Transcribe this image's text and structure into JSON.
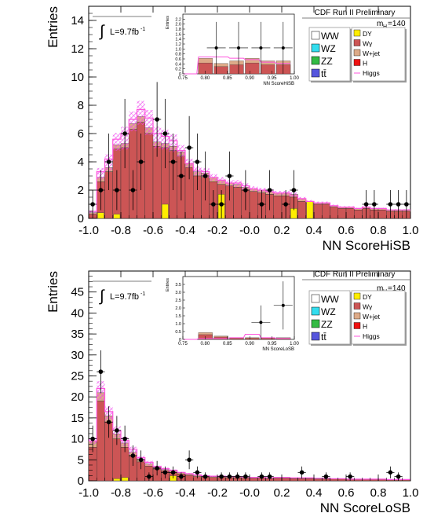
{
  "colors": {
    "WW": "#ffffff",
    "WZ": "#33ddee",
    "ZZ": "#33bb44",
    "ttbar": "#5555dd",
    "DY": "#ffee00",
    "Wgamma": "#cc5555",
    "Wjet": "#ddaa88",
    "H": "#ee1111",
    "Higgs": "#ff55dd",
    "hatch": "#ee44ee"
  },
  "chart_data": [
    {
      "id": "hisb",
      "type": "bar",
      "subtype": "stacked-histogram",
      "banner": "CDF Run II Preliminary",
      "lumi_prefix": "L=9.7fb",
      "lumi_sup": "-1",
      "mass_label": "m",
      "mass_sub": "H",
      "mass_value": "=140",
      "xlabel": "NN ScoreHiSB",
      "ylabel": "Entries",
      "xlim": [
        -1.0,
        1.0
      ],
      "ylim": [
        0,
        15
      ],
      "xticks": [
        "-1.0",
        "-0.8",
        "-0.6",
        "-0.4",
        "-0.2",
        "-0.0",
        "0.2",
        "0.4",
        "0.6",
        "0.8",
        "1.0"
      ],
      "yticks": [
        "0",
        "2",
        "4",
        "6",
        "8",
        "10",
        "12",
        "14"
      ],
      "bins": 40,
      "stack": {
        "Wgamma": [
          0.3,
          2.6,
          3.3,
          4.9,
          5.0,
          6.3,
          6.8,
          6.0,
          5.1,
          5.0,
          4.8,
          4.4,
          3.6,
          3.0,
          2.9,
          2.6,
          2.4,
          2.3,
          2.2,
          2.0,
          1.9,
          1.8,
          1.7,
          1.6,
          1.6,
          1.5,
          1.2,
          1.1,
          1.0,
          1.0,
          0.8,
          0.7,
          0.7,
          0.6,
          0.7,
          0.6,
          0.6,
          0.5,
          0.5,
          0.5
        ],
        "DY": [
          0,
          0,
          0,
          0,
          0,
          0,
          0,
          0,
          0,
          0,
          0,
          0,
          0,
          0,
          0,
          0,
          0,
          0,
          0,
          0,
          0,
          0,
          0,
          0,
          0,
          0,
          0,
          0,
          0,
          0,
          0,
          0,
          0,
          0,
          0,
          0,
          0,
          0,
          0,
          0
        ],
        "DY_hl": [
          0,
          0.4,
          0,
          0.3,
          0,
          0,
          0,
          0,
          0,
          1.0,
          0,
          0,
          0,
          0,
          0,
          0,
          1.7,
          0,
          0,
          0,
          0,
          0,
          0,
          0,
          0,
          0.7,
          0,
          1.2,
          0,
          0,
          0,
          0,
          0,
          0,
          0,
          0,
          0,
          0,
          0,
          0
        ],
        "Wjet": [
          0.1,
          0.3,
          0.3,
          0.3,
          0.3,
          0.4,
          0.4,
          0.4,
          0.3,
          0.3,
          0.3,
          0.3,
          0.3,
          0.3,
          0.3,
          0.3,
          0.3,
          0.2,
          0.2,
          0.2,
          0.2,
          0.2,
          0.2,
          0.2,
          0.2,
          0.2,
          0.2,
          0.1,
          0.1,
          0.1,
          0.1,
          0.1,
          0.1,
          0.1,
          0.1,
          0.1,
          0.1,
          0.1,
          0.1,
          0.1
        ]
      },
      "higgs": [
        0.5,
        3.3,
        4.2,
        5.6,
        6.0,
        7.0,
        7.7,
        7.1,
        6.0,
        5.8,
        5.5,
        4.8,
        3.9,
        3.4,
        3.3,
        2.9,
        2.7,
        2.5,
        2.5,
        2.3,
        2.1,
        2.0,
        1.9,
        1.8,
        1.8,
        1.6,
        1.4,
        1.2,
        1.1,
        1.1,
        0.9,
        0.8,
        0.8,
        0.7,
        0.8,
        0.7,
        0.7,
        0.6,
        0.6,
        0.6
      ],
      "data_points": [
        {
          "x": -0.975,
          "y": 1
        },
        {
          "x": -0.925,
          "y": 2
        },
        {
          "x": -0.875,
          "y": 4
        },
        {
          "x": -0.825,
          "y": 2
        },
        {
          "x": -0.775,
          "y": 6
        },
        {
          "x": -0.725,
          "y": 2
        },
        {
          "x": -0.675,
          "y": 4
        },
        {
          "x": -0.575,
          "y": 7
        },
        {
          "x": -0.525,
          "y": 6
        },
        {
          "x": -0.475,
          "y": 4
        },
        {
          "x": -0.425,
          "y": 3
        },
        {
          "x": -0.375,
          "y": 5
        },
        {
          "x": -0.325,
          "y": 4
        },
        {
          "x": -0.275,
          "y": 3
        },
        {
          "x": -0.225,
          "y": 1
        },
        {
          "x": -0.175,
          "y": 1
        },
        {
          "x": -0.125,
          "y": 3
        },
        {
          "x": -0.025,
          "y": 2
        },
        {
          "x": 0.075,
          "y": 1
        },
        {
          "x": 0.125,
          "y": 2
        },
        {
          "x": 0.225,
          "y": 1
        },
        {
          "x": 0.275,
          "y": 2
        },
        {
          "x": 0.725,
          "y": 1
        },
        {
          "x": 0.775,
          "y": 1
        },
        {
          "x": 0.875,
          "y": 1
        },
        {
          "x": 0.925,
          "y": 1
        },
        {
          "x": 0.975,
          "y": 1
        }
      ],
      "inset": {
        "ylabel": "Entries",
        "xlabel": "NN ScoreHiSB",
        "xlim": [
          0.75,
          1.0
        ],
        "ylim": [
          0,
          2.3
        ],
        "xticks": [
          "0.75",
          "0.80",
          "0.85",
          "0.90",
          "0.95",
          "1.00"
        ],
        "yticks": [
          "0",
          "0.2",
          "0.4",
          "0.6",
          "0.8",
          "1.0",
          "1.2",
          "1.4",
          "1.6",
          "1.8",
          "2.0",
          "2.2"
        ],
        "bars": [
          0,
          0.6,
          0.4,
          0.5,
          0.6,
          0.5,
          0.5
        ],
        "higgs": [
          0,
          0.65,
          0.65,
          0.6,
          0.55,
          0.45,
          0.4
        ],
        "data_points": [
          {
            "x": 0.825,
            "y": 1
          },
          {
            "x": 0.875,
            "y": 1
          },
          {
            "x": 0.925,
            "y": 1
          },
          {
            "x": 0.975,
            "y": 1
          }
        ]
      }
    },
    {
      "id": "losb",
      "type": "bar",
      "subtype": "stacked-histogram",
      "banner": "CDF Run II Preliminary",
      "lumi_prefix": "L=9.7fb",
      "lumi_sup": "-1",
      "mass_label": "m",
      "mass_sub": "H",
      "mass_value": "=140",
      "xlabel": "NN ScoreLoSB",
      "ylabel": "Entries",
      "xlim": [
        -1.0,
        1.0
      ],
      "ylim": [
        0,
        50
      ],
      "xticks": [
        "-1.0",
        "-0.8",
        "-0.6",
        "-0.4",
        "-0.2",
        "-0.0",
        "0.2",
        "0.4",
        "0.6",
        "0.8",
        "1.0"
      ],
      "yticks": [
        "0",
        "5",
        "10",
        "15",
        "20",
        "25",
        "30",
        "35",
        "40",
        "45"
      ],
      "bins": 40,
      "stack": {
        "Wgamma": [
          8,
          19,
          14,
          10,
          8,
          6,
          4.5,
          3.5,
          2.8,
          2.4,
          2.0,
          1.6,
          1.3,
          1.0,
          0.9,
          0.8,
          0.8,
          0.7,
          0.7,
          0.6,
          0.6,
          0.6,
          0.5,
          0.6,
          0.6,
          0.5,
          0.5,
          0.5,
          0.4,
          0.4,
          0.4,
          0.4,
          0.3,
          0.3,
          0.3,
          0.3,
          0.3,
          0.2,
          0.2,
          0.2
        ],
        "DY": [
          0,
          0,
          0,
          0,
          0,
          0,
          0,
          0,
          0,
          0,
          0,
          0,
          0,
          0,
          0,
          0,
          0,
          0,
          0,
          0,
          0,
          0,
          0,
          0,
          0,
          0,
          0,
          0,
          0,
          0,
          0,
          0,
          0,
          0,
          0,
          0,
          0,
          0,
          0,
          0
        ],
        "DY_hl": [
          0,
          0,
          0,
          0.5,
          0.8,
          0,
          0,
          0,
          0,
          0,
          1.2,
          0,
          0,
          0,
          0,
          0,
          0,
          0,
          0,
          0,
          0,
          0,
          0,
          0,
          0,
          0,
          0,
          0,
          0,
          0,
          0,
          0,
          0,
          0,
          0,
          0,
          0,
          0,
          0,
          0
        ],
        "Wjet": [
          1.5,
          2.0,
          1.5,
          1.2,
          1.0,
          0.8,
          0.6,
          0.5,
          0.4,
          0.3,
          0.3,
          0.3,
          0.3,
          0.3,
          0.3,
          0.2,
          0.2,
          0.2,
          0.2,
          0.2,
          0.2,
          0.2,
          0.2,
          0.2,
          0.2,
          0.2,
          0.2,
          0.2,
          0.2,
          0.2,
          0.1,
          0.1,
          0.1,
          0.1,
          0.1,
          0.1,
          0.1,
          0.1,
          0.1,
          0.1
        ]
      },
      "higgs": [
        9.5,
        22,
        16.5,
        12,
        9.6,
        7.5,
        5.5,
        4.4,
        3.4,
        2.9,
        2.5,
        2.0,
        1.7,
        1.4,
        1.2,
        1.1,
        1.1,
        1.0,
        1.0,
        0.9,
        0.8,
        0.8,
        0.7,
        0.8,
        0.8,
        0.7,
        0.7,
        0.7,
        0.6,
        0.6,
        0.5,
        0.5,
        0.4,
        0.4,
        0.4,
        0.4,
        0.4,
        0.3,
        0.3,
        0.3
      ],
      "data_points": [
        {
          "x": -0.975,
          "y": 10
        },
        {
          "x": -0.925,
          "y": 26
        },
        {
          "x": -0.875,
          "y": 14
        },
        {
          "x": -0.825,
          "y": 12
        },
        {
          "x": -0.775,
          "y": 10
        },
        {
          "x": -0.725,
          "y": 6
        },
        {
          "x": -0.675,
          "y": 5
        },
        {
          "x": -0.625,
          "y": 1
        },
        {
          "x": -0.575,
          "y": 3
        },
        {
          "x": -0.525,
          "y": 2
        },
        {
          "x": -0.475,
          "y": 2
        },
        {
          "x": -0.425,
          "y": 1
        },
        {
          "x": -0.375,
          "y": 5
        },
        {
          "x": -0.325,
          "y": 2
        },
        {
          "x": -0.275,
          "y": 1
        },
        {
          "x": -0.175,
          "y": 1
        },
        {
          "x": -0.125,
          "y": 1
        },
        {
          "x": -0.075,
          "y": 1
        },
        {
          "x": -0.025,
          "y": 1
        },
        {
          "x": 0.075,
          "y": 1
        },
        {
          "x": 0.125,
          "y": 1
        },
        {
          "x": 0.325,
          "y": 2
        },
        {
          "x": 0.475,
          "y": 1
        },
        {
          "x": 0.625,
          "y": 1
        },
        {
          "x": 0.875,
          "y": 2
        },
        {
          "x": 0.925,
          "y": 1
        }
      ],
      "inset": {
        "ylabel": "Entries",
        "xlabel": "NN ScoreLoSB",
        "xlim": [
          0.75,
          1.0
        ],
        "ylim": [
          0,
          3.7
        ],
        "xticks": [
          "0.75",
          "0.80",
          "0.85",
          "0.90",
          "0.95",
          "1.00"
        ],
        "yticks": [
          "0",
          "0.5",
          "1.0",
          "1.5",
          "2.0",
          "2.5",
          "3.0",
          "3.5"
        ],
        "bars": [
          0,
          0.4,
          0.2,
          0.1,
          0.1,
          0.1,
          0.1
        ],
        "higgs": [
          0,
          0.05,
          0.05,
          0.1,
          0.3,
          0.1,
          0.05
        ],
        "data_points": [
          {
            "x": 0.925,
            "y": 1
          },
          {
            "x": 0.975,
            "y": 2
          }
        ]
      }
    }
  ],
  "legend_left": [
    {
      "label": "WW",
      "color_key": "WW"
    },
    {
      "label": "WZ",
      "color_key": "WZ"
    },
    {
      "label": "ZZ",
      "color_key": "ZZ"
    },
    {
      "label": "tt̄",
      "color_key": "ttbar"
    }
  ],
  "legend_right": [
    {
      "label": "DY",
      "color_key": "DY",
      "style": "box"
    },
    {
      "label": "Wγ",
      "color_key": "Wgamma",
      "style": "box"
    },
    {
      "label": "W+jet",
      "color_key": "Wjet",
      "style": "box"
    },
    {
      "label": "H",
      "color_key": "H",
      "style": "box"
    },
    {
      "label": "Higgs",
      "color_key": "Higgs",
      "style": "line"
    }
  ]
}
